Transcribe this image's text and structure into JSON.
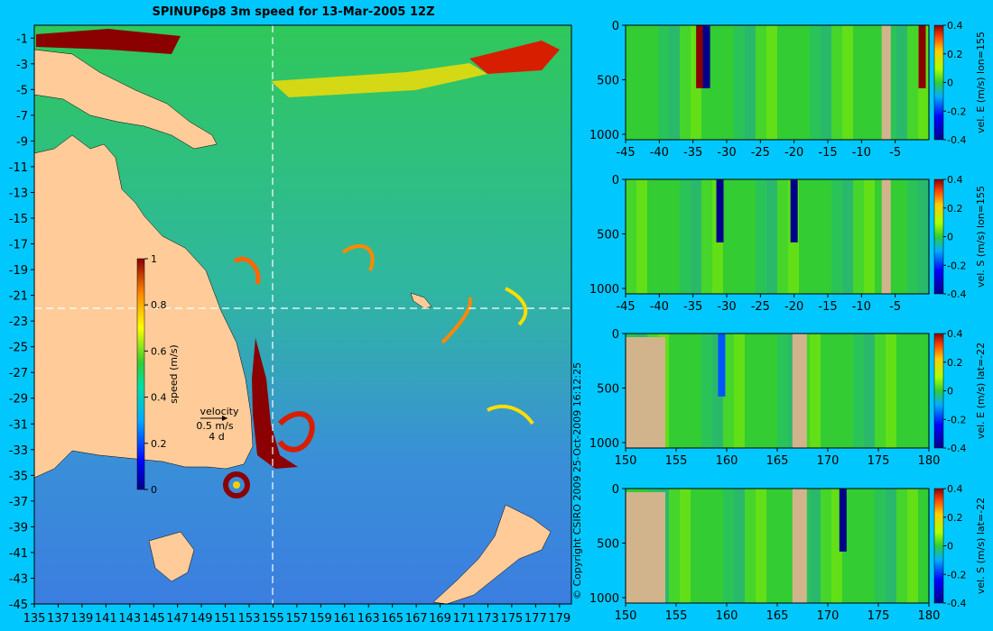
{
  "header": {
    "title": "SPINUP6p8 3m speed for 13-Mar-2005 12Z"
  },
  "copyright": "© Copyright CSIRO 2009   25-Oct-2009 16:12:25",
  "colors": {
    "background": "#00c8ff",
    "land": "#ffcc99",
    "bathymetry_mask": "#d2b48c",
    "jet_low": "#00008b",
    "jet_high": "#8b0000"
  },
  "chart_data": [
    {
      "type": "heatmap",
      "panel": "map",
      "title": "SPINUP6p8 3m speed for 13-Mar-2005 12Z",
      "x_ticks": [
        "135",
        "137",
        "139",
        "141",
        "143",
        "145",
        "147",
        "149",
        "151",
        "153",
        "155",
        "157",
        "159",
        "161",
        "163",
        "165",
        "167",
        "169",
        "171",
        "173",
        "175",
        "177",
        "179"
      ],
      "y_ticks": [
        "-1",
        "-3",
        "-5",
        "-7",
        "-9",
        "-11",
        "-13",
        "-15",
        "-17",
        "-19",
        "-21",
        "-23",
        "-25",
        "-27",
        "-29",
        "-31",
        "-33",
        "-35",
        "-37",
        "-39",
        "-41",
        "-43",
        "-45"
      ],
      "xlim": [
        135,
        180
      ],
      "ylim": [
        -45,
        0
      ],
      "section_lon": 155,
      "section_lat": -22,
      "colorbar": {
        "label": "speed (m/s)",
        "ticks": [
          "0",
          "0.2",
          "0.4",
          "0.6",
          "0.8",
          "1"
        ],
        "range": [
          0,
          1
        ]
      },
      "velocity_key": {
        "label": "velocity",
        "scale": "0.5 m/s",
        "spacing": "4 d"
      },
      "features": [
        {
          "name": "eddy",
          "lon": 151.5,
          "lat": -36.2,
          "speed": 1.0
        },
        {
          "name": "East Australian Current",
          "lon": 154.2,
          "lat": -31,
          "speed": 1.0
        }
      ]
    },
    {
      "type": "heatmap",
      "panel": "section-1",
      "x_ticks": [
        "-45",
        "-40",
        "-35",
        "-30",
        "-25",
        "-20",
        "-15",
        "-10",
        "-5"
      ],
      "y_ticks": [
        "0",
        "500",
        "1000"
      ],
      "xlim": [
        -45,
        0
      ],
      "ylim": [
        1050,
        0
      ],
      "colorbar": {
        "label": "vel. E (m/s) lon=155",
        "ticks": [
          "0.4",
          "0.2",
          "0",
          "-0.2",
          "-0.4"
        ],
        "range": [
          -0.4,
          0.4
        ]
      },
      "features": [
        {
          "x": -34,
          "value": 0.4
        },
        {
          "x": -33,
          "value": -0.4
        },
        {
          "x": -1,
          "value": 0.4
        }
      ]
    },
    {
      "type": "heatmap",
      "panel": "section-2",
      "x_ticks": [
        "-45",
        "-40",
        "-35",
        "-30",
        "-25",
        "-20",
        "-15",
        "-10",
        "-5"
      ],
      "y_ticks": [
        "0",
        "500",
        "1000"
      ],
      "xlim": [
        -45,
        0
      ],
      "ylim": [
        1050,
        0
      ],
      "colorbar": {
        "label": "vel. S (m/s) lon=155",
        "ticks": [
          "0.4",
          "0.2",
          "0",
          "-0.2",
          "-0.4"
        ],
        "range": [
          -0.4,
          0.4
        ]
      },
      "features": [
        {
          "x": -31,
          "value": -0.4
        },
        {
          "x": -20,
          "value": -0.35
        }
      ]
    },
    {
      "type": "heatmap",
      "panel": "section-3",
      "x_ticks": [
        "150",
        "155",
        "160",
        "165",
        "170",
        "175",
        "180"
      ],
      "y_ticks": [
        "0",
        "500",
        "1000"
      ],
      "xlim": [
        150,
        180
      ],
      "ylim": [
        1050,
        0
      ],
      "colorbar": {
        "label": "vel. E (m/s) lat=-22",
        "ticks": [
          "0.4",
          "0.2",
          "0",
          "-0.2",
          "-0.4"
        ],
        "range": [
          -0.4,
          0.4
        ]
      },
      "features": [
        {
          "x": 159.5,
          "value": -0.3
        }
      ]
    },
    {
      "type": "heatmap",
      "panel": "section-4",
      "x_ticks": [
        "150",
        "155",
        "160",
        "165",
        "170",
        "175",
        "180"
      ],
      "y_ticks": [
        "0",
        "500",
        "1000"
      ],
      "xlim": [
        150,
        180
      ],
      "ylim": [
        1050,
        0
      ],
      "colorbar": {
        "label": "vel. S (m/s) lat=-22",
        "ticks": [
          "0.4",
          "0.2",
          "0",
          "-0.2",
          "-0.4"
        ],
        "range": [
          -0.4,
          0.4
        ]
      },
      "features": [
        {
          "x": 171.5,
          "value": -0.4
        }
      ]
    }
  ]
}
